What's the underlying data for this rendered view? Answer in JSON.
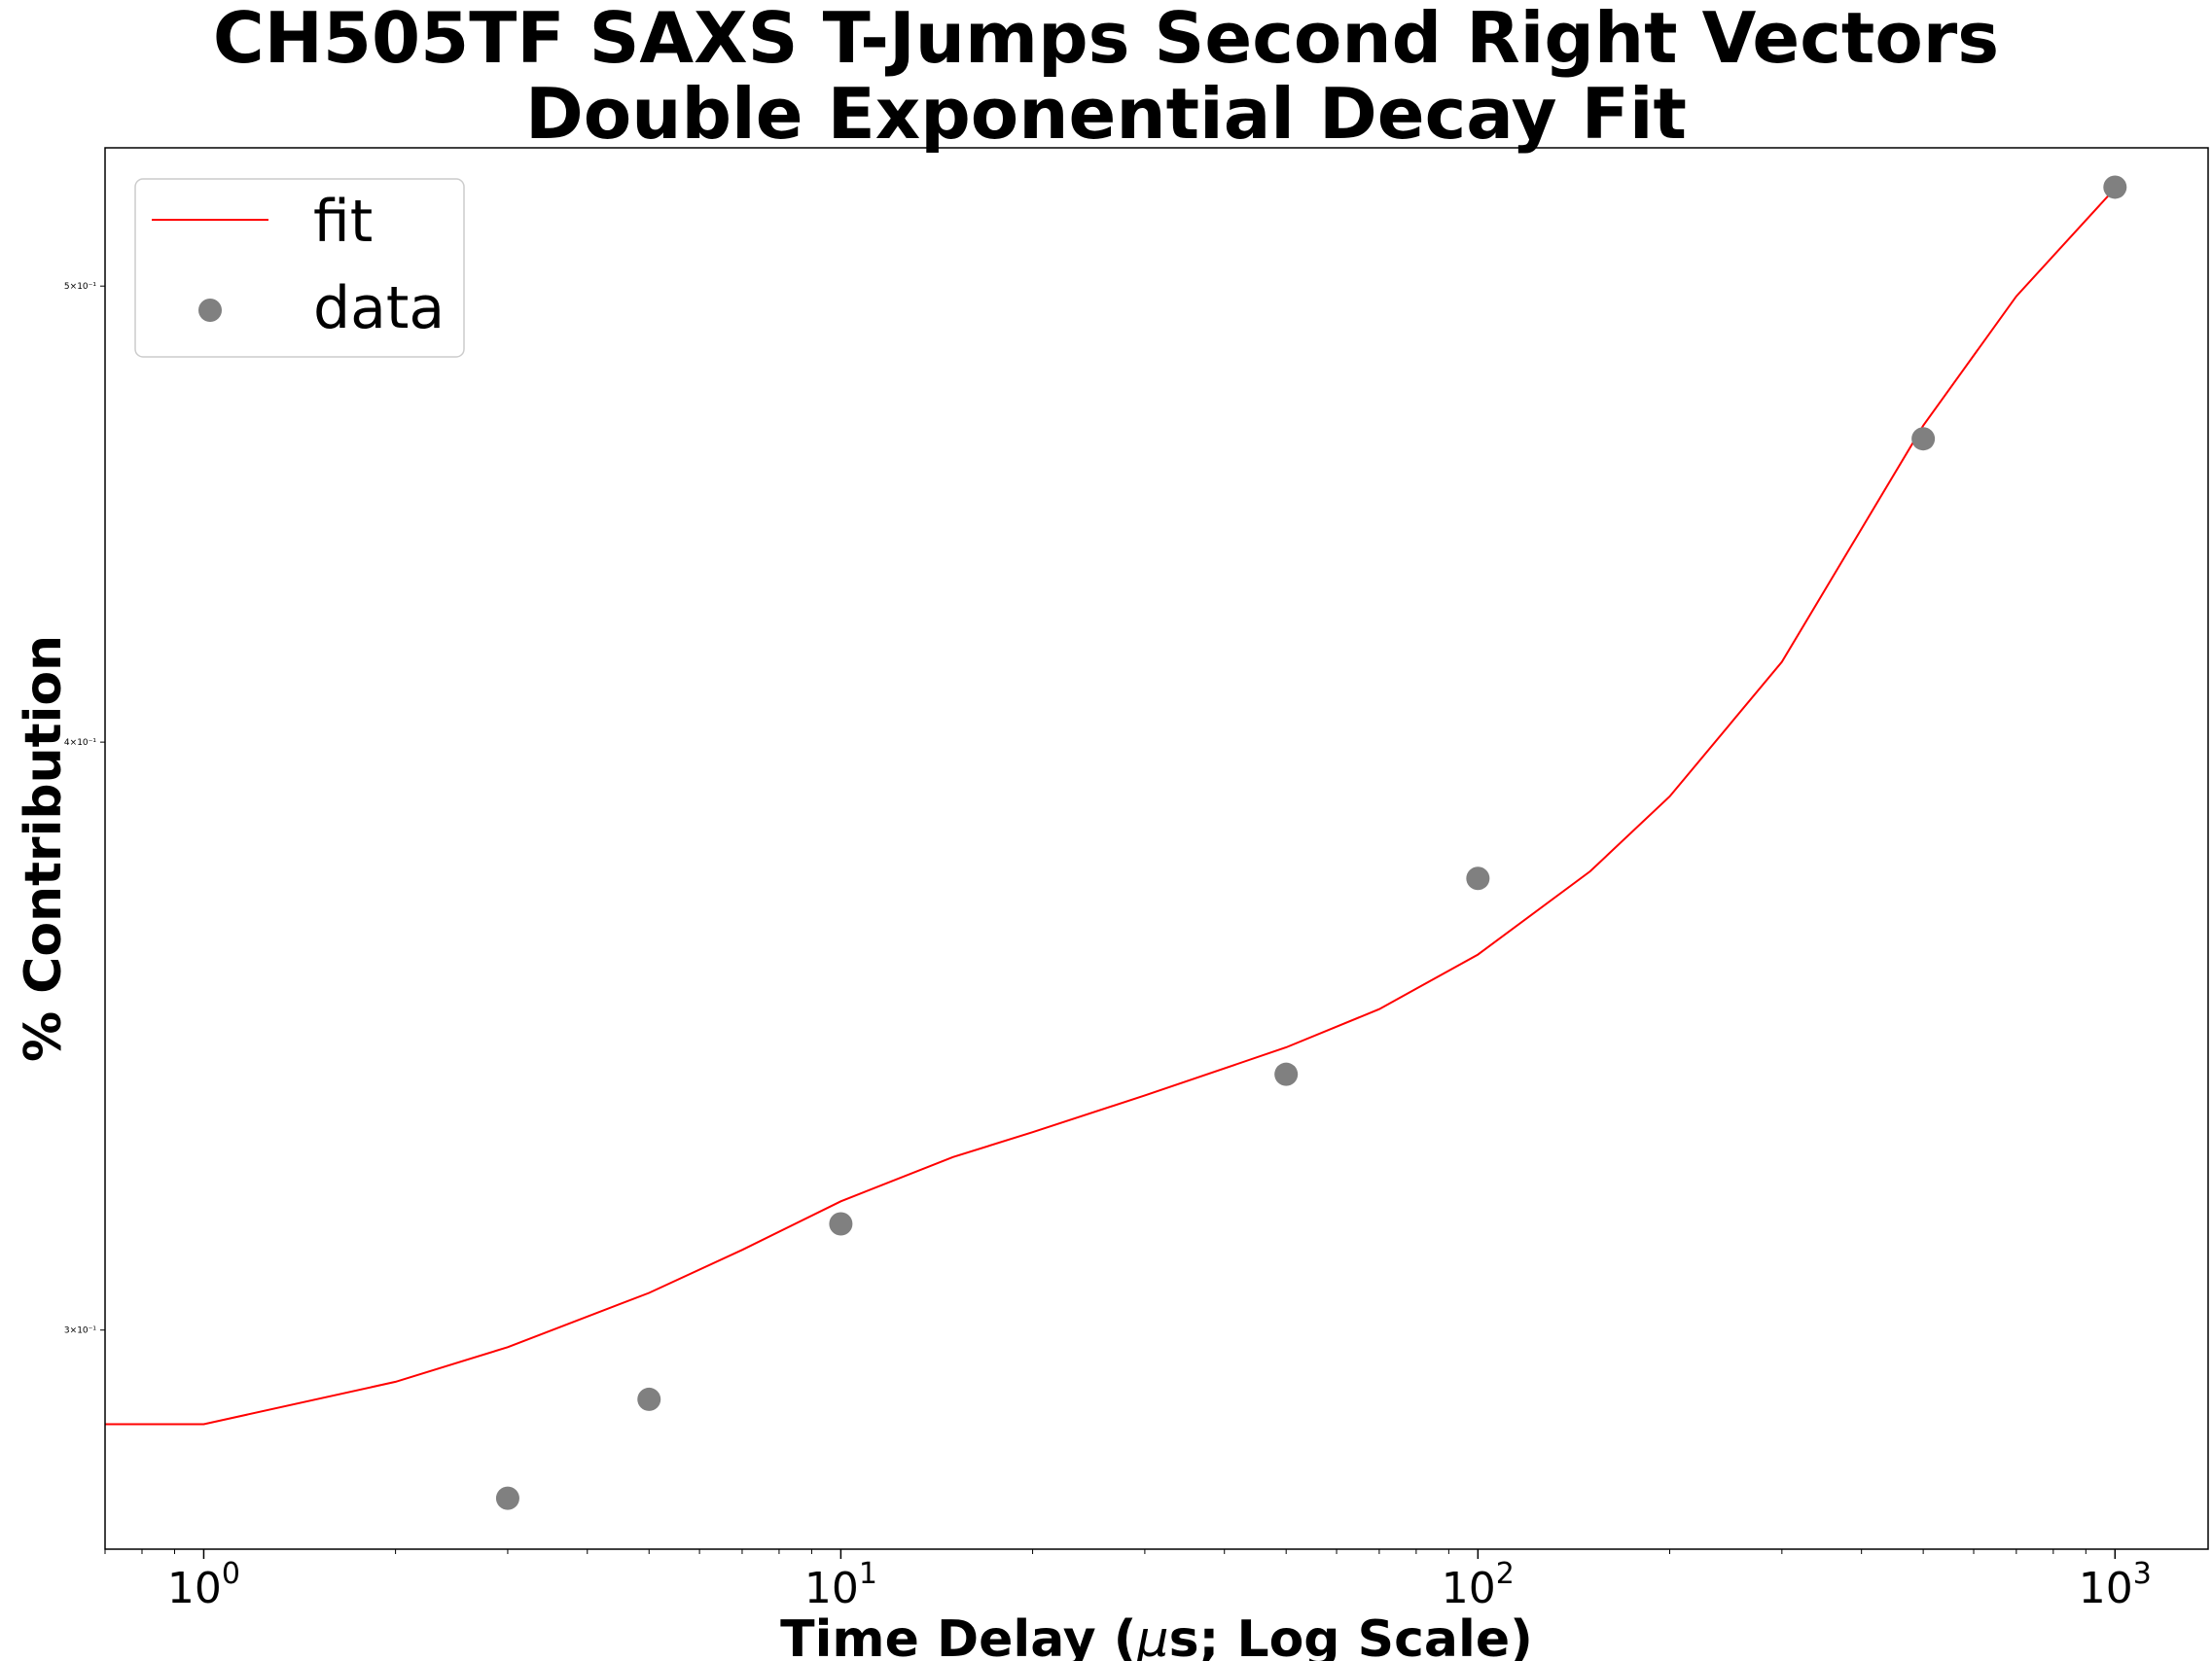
{
  "chart_data": {
    "type": "scatter",
    "title_lines": [
      "CH505TF SAXS T-Jumps Second Right Vectors",
      "Double Exponential Decay Fit"
    ],
    "xlabel_prefix": "Time Delay (",
    "xlabel_mu": "μ",
    "xlabel_suffix": "s; Log Scale)",
    "ylabel": "% Contribution",
    "xscale": "log",
    "yscale": "log",
    "xlim": [
      0.7,
      1400
    ],
    "ylim": [
      0.2695,
      0.535
    ],
    "x_major_ticks": [
      {
        "value": 1,
        "base": "10",
        "exp": "0"
      },
      {
        "value": 10,
        "base": "10",
        "exp": "1"
      },
      {
        "value": 100,
        "base": "10",
        "exp": "2"
      },
      {
        "value": 1000,
        "base": "10",
        "exp": "3"
      }
    ],
    "y_ticks": [
      {
        "value": 0.3,
        "label": "3×10⁻¹"
      },
      {
        "value": 0.4,
        "label": "4×10⁻¹"
      },
      {
        "value": 0.5,
        "label": "5×10⁻¹"
      }
    ],
    "legend_position": "upper-left",
    "grid": false,
    "series": [
      {
        "name": "fit",
        "kind": "line",
        "color": "#ff0000",
        "x": [
          0.5,
          1,
          2,
          3,
          5,
          7,
          10,
          15,
          20,
          30,
          50,
          70,
          100,
          150,
          200,
          300,
          500,
          700,
          1000
        ],
        "y": [
          0.2865,
          0.2865,
          0.2925,
          0.2975,
          0.3055,
          0.312,
          0.3195,
          0.3265,
          0.3305,
          0.3365,
          0.3445,
          0.351,
          0.3605,
          0.3755,
          0.3895,
          0.416,
          0.467,
          0.4975,
          0.5245
        ]
      },
      {
        "name": "data",
        "kind": "scatter",
        "color": "#808080",
        "x": [
          3,
          5,
          10,
          50,
          100,
          500,
          1000
        ],
        "y": [
          0.2763,
          0.29,
          0.316,
          0.34,
          0.3742,
          0.464,
          0.5248
        ]
      }
    ]
  }
}
